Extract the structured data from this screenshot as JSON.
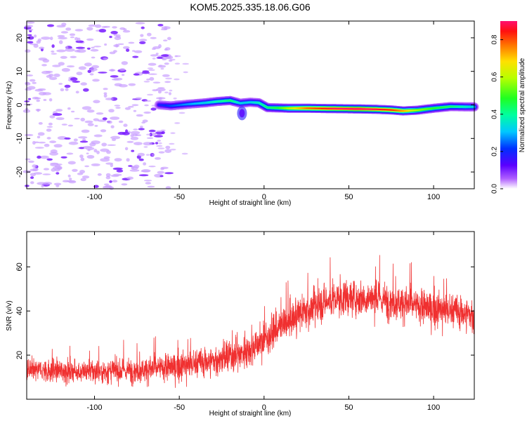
{
  "title": "KOM5.2025.335.18.06.G06",
  "colors": {
    "snr_line": "#f03030",
    "scatter_light": "#c9a0ff",
    "scatter_dark": "#7a1fff"
  },
  "chart_data": [
    {
      "type": "heatmap",
      "name": "spectrogram",
      "xlabel": "Height of straight line (km)",
      "ylabel": "Frequency (Hz)",
      "xlim": [
        -140,
        124
      ],
      "ylim": [
        -25,
        25
      ],
      "xticks": [
        -100,
        -50,
        0,
        50,
        100
      ],
      "yticks": [
        -20,
        -10,
        0,
        10,
        20
      ],
      "xtick_labels": [
        "-100",
        "-50",
        "0",
        "50",
        "100"
      ],
      "ytick_labels": [
        "-20",
        "-10",
        "0",
        "10",
        "20"
      ],
      "ridge": {
        "x": [
          -62,
          -55,
          -45,
          -35,
          -28,
          -20,
          -14,
          -8,
          -3,
          2,
          8,
          15,
          25,
          40,
          55,
          65,
          75,
          82,
          90,
          100,
          110,
          124
        ],
        "y": [
          0.0,
          -0.3,
          0.2,
          0.6,
          1.0,
          1.3,
          0.5,
          0.8,
          0.6,
          -0.8,
          -0.9,
          -1.0,
          -1.0,
          -1.1,
          -1.2,
          -1.3,
          -1.5,
          -1.8,
          -1.6,
          -1.0,
          -0.5,
          -0.6
        ],
        "amplitude": [
          0.15,
          0.2,
          0.25,
          0.3,
          0.35,
          0.4,
          0.3,
          0.3,
          0.35,
          0.4,
          0.45,
          0.6,
          0.75,
          0.85,
          0.9,
          0.85,
          0.8,
          0.7,
          0.55,
          0.45,
          0.4,
          0.3
        ]
      },
      "noise_region": {
        "x_range": [
          -140,
          -55
        ],
        "y_range": [
          -25,
          25
        ]
      },
      "colorbar": {
        "label": "Normalized spectral amplitude",
        "range": [
          0.0,
          0.9
        ],
        "ticks": [
          0.0,
          0.2,
          0.4,
          0.6,
          0.8
        ],
        "tick_labels": [
          "0.0",
          "0.2",
          "0.4",
          "0.6",
          "0.8"
        ]
      }
    },
    {
      "type": "line",
      "name": "snr",
      "xlabel": "Height of straight line (km)",
      "ylabel": "SNR (v/v)",
      "xlim": [
        -140,
        124
      ],
      "ylim": [
        0,
        76
      ],
      "xticks": [
        -100,
        -50,
        0,
        50,
        100
      ],
      "yticks": [
        20,
        40,
        60
      ],
      "xtick_labels": [
        "-100",
        "-50",
        "0",
        "50",
        "100"
      ],
      "ytick_labels": [
        "20",
        "40",
        "60"
      ],
      "trend": {
        "x": [
          -140,
          -120,
          -100,
          -80,
          -60,
          -40,
          -20,
          -10,
          0,
          10,
          20,
          30,
          40,
          50,
          60,
          70,
          80,
          90,
          100,
          110,
          124
        ],
        "mean": [
          13,
          13,
          12.5,
          13,
          14,
          16,
          19,
          22,
          27,
          33,
          38,
          42,
          45,
          46,
          46,
          45,
          44,
          42,
          41,
          40,
          38
        ],
        "spread": [
          9,
          9,
          9,
          9,
          10,
          11,
          12,
          12,
          12,
          12,
          12,
          13,
          13,
          13,
          13,
          13,
          13,
          13,
          13,
          13,
          13
        ]
      }
    }
  ]
}
